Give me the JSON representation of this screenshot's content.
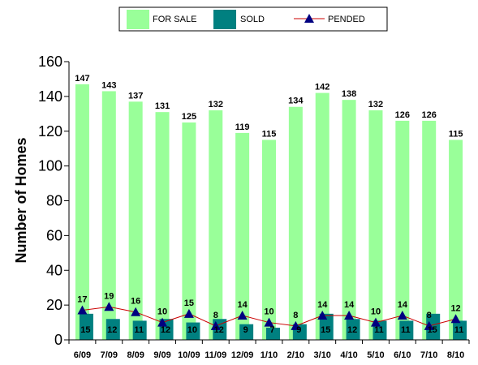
{
  "chart_data": {
    "type": "bar",
    "ylabel": "Number of Homes",
    "ylim": [
      0,
      160
    ],
    "yticks": [
      0,
      20,
      40,
      60,
      80,
      100,
      120,
      140,
      160
    ],
    "categories": [
      "6/09",
      "7/09",
      "8/09",
      "9/09",
      "10/09",
      "11/09",
      "12/09",
      "1/10",
      "2/10",
      "3/10",
      "4/10",
      "5/10",
      "6/10",
      "7/10",
      "8/10"
    ],
    "series": [
      {
        "name": "FOR SALE",
        "type": "bar",
        "color": "#99FF99",
        "values": [
          147,
          143,
          137,
          131,
          125,
          132,
          119,
          115,
          134,
          142,
          138,
          132,
          126,
          126,
          115
        ]
      },
      {
        "name": "SOLD",
        "type": "bar",
        "color": "#008080",
        "values": [
          15,
          12,
          11,
          12,
          10,
          12,
          9,
          7,
          9,
          15,
          12,
          11,
          11,
          15,
          11
        ]
      },
      {
        "name": "PENDED",
        "type": "line",
        "color": "#CC0000",
        "marker_color": "#000080",
        "values": [
          17,
          19,
          16,
          10,
          15,
          8,
          14,
          10,
          8,
          14,
          14,
          10,
          14,
          8,
          12
        ]
      }
    ],
    "legend_position": "top",
    "grid": false
  }
}
